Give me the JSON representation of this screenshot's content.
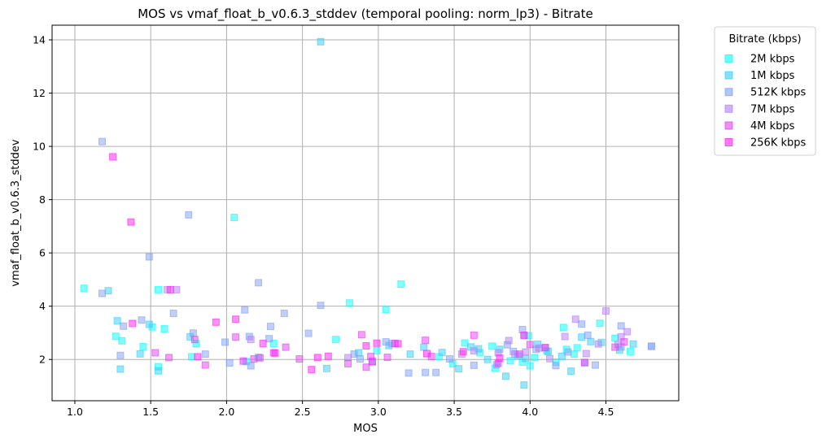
{
  "chart_data": {
    "type": "scatter",
    "title": "MOS vs vmaf_float_b_v0.6.3_stddev (temporal pooling: norm_lp3) - Bitrate",
    "xlabel": "MOS",
    "ylabel": "vmaf_float_b_v0.6.3_stddev",
    "xlim": [
      0.85,
      4.98
    ],
    "ylim": [
      0.45,
      14.55
    ],
    "xticks": [
      1.0,
      1.5,
      2.0,
      2.5,
      3.0,
      3.5,
      4.0,
      4.5
    ],
    "xtick_labels": [
      "1.0",
      "1.5",
      "2.0",
      "2.5",
      "3.0",
      "3.5",
      "4.0",
      "4.5"
    ],
    "yticks": [
      2,
      4,
      6,
      8,
      10,
      12,
      14
    ],
    "ytick_labels": [
      "2",
      "4",
      "6",
      "8",
      "10",
      "12",
      "14"
    ],
    "grid": true,
    "marker": "square",
    "legend": {
      "title": "Bitrate (kbps)",
      "placement": "outside-top-right"
    },
    "series": [
      {
        "name": "2M kbps",
        "color": "#00ffff",
        "points": [
          [
            1.06,
            4.67
          ],
          [
            1.27,
            2.87
          ],
          [
            1.31,
            2.7
          ],
          [
            1.45,
            2.48
          ],
          [
            1.51,
            3.22
          ],
          [
            1.55,
            1.73
          ],
          [
            1.55,
            4.62
          ],
          [
            1.59,
            3.15
          ],
          [
            1.77,
            2.1
          ],
          [
            1.8,
            2.6
          ],
          [
            2.05,
            7.33
          ],
          [
            2.13,
            1.92
          ],
          [
            2.31,
            2.6
          ],
          [
            2.72,
            2.75
          ],
          [
            2.81,
            4.12
          ],
          [
            2.99,
            2.33
          ],
          [
            3.05,
            3.87
          ],
          [
            3.15,
            4.83
          ],
          [
            3.4,
            2.1
          ],
          [
            3.49,
            1.84
          ],
          [
            3.57,
            2.62
          ],
          [
            3.67,
            2.25
          ],
          [
            3.75,
            2.5
          ],
          [
            3.77,
            1.67
          ],
          [
            3.87,
            1.95
          ],
          [
            3.95,
            1.9
          ],
          [
            4.0,
            1.76
          ],
          [
            4.03,
            2.07
          ],
          [
            4.11,
            2.32
          ],
          [
            4.17,
            1.9
          ],
          [
            4.22,
            3.2
          ],
          [
            4.24,
            2.38
          ],
          [
            4.29,
            2.2
          ],
          [
            4.31,
            2.44
          ],
          [
            4.46,
            3.36
          ],
          [
            4.56,
            2.8
          ],
          [
            4.66,
            2.3
          ],
          [
            4.8,
            2.5
          ],
          [
            3.99,
            2.89
          ]
        ]
      },
      {
        "name": "1M kbps",
        "color": "#32cdfe",
        "points": [
          [
            1.22,
            4.58
          ],
          [
            1.28,
            3.45
          ],
          [
            1.3,
            1.64
          ],
          [
            1.43,
            2.21
          ],
          [
            1.49,
            3.32
          ],
          [
            1.55,
            1.57
          ],
          [
            1.76,
            2.85
          ],
          [
            2.21,
            2.08
          ],
          [
            2.62,
            13.93
          ],
          [
            2.66,
            1.66
          ],
          [
            2.87,
            2.25
          ],
          [
            2.96,
            1.89
          ],
          [
            3.07,
            2.52
          ],
          [
            3.21,
            2.2
          ],
          [
            3.3,
            2.46
          ],
          [
            3.42,
            2.26
          ],
          [
            3.53,
            1.65
          ],
          [
            3.61,
            2.47
          ],
          [
            3.66,
            2.4
          ],
          [
            3.72,
            2.0
          ],
          [
            3.8,
            2.38
          ],
          [
            3.84,
            1.37
          ],
          [
            3.92,
            2.13
          ],
          [
            3.96,
            1.04
          ],
          [
            4.05,
            2.57
          ],
          [
            4.12,
            2.3
          ],
          [
            4.21,
            2.12
          ],
          [
            4.27,
            1.56
          ],
          [
            4.34,
            2.84
          ],
          [
            4.4,
            2.67
          ],
          [
            4.47,
            2.64
          ],
          [
            4.59,
            2.36
          ],
          [
            4.68,
            2.58
          ],
          [
            3.97,
            2.04
          ]
        ]
      },
      {
        "name": "512K kbps",
        "color": "#7f9ef8",
        "points": [
          [
            1.18,
            10.18
          ],
          [
            1.18,
            4.48
          ],
          [
            1.3,
            2.15
          ],
          [
            1.32,
            3.25
          ],
          [
            1.44,
            3.48
          ],
          [
            1.49,
            5.85
          ],
          [
            1.65,
            3.73
          ],
          [
            1.75,
            7.43
          ],
          [
            1.78,
            2.99
          ],
          [
            1.86,
            2.2
          ],
          [
            1.99,
            2.65
          ],
          [
            2.02,
            1.87
          ],
          [
            2.12,
            3.86
          ],
          [
            2.15,
            2.86
          ],
          [
            2.16,
            1.76
          ],
          [
            2.21,
            4.88
          ],
          [
            2.28,
            2.78
          ],
          [
            2.29,
            3.24
          ],
          [
            2.38,
            3.73
          ],
          [
            2.54,
            2.98
          ],
          [
            2.62,
            4.03
          ],
          [
            2.84,
            2.2
          ],
          [
            2.88,
            2.02
          ],
          [
            3.05,
            2.66
          ],
          [
            3.09,
            2.6
          ],
          [
            3.2,
            1.49
          ],
          [
            3.31,
            1.51
          ],
          [
            3.38,
            1.51
          ],
          [
            3.47,
            2.02
          ],
          [
            3.63,
            1.78
          ],
          [
            3.78,
            1.8
          ],
          [
            3.85,
            2.55
          ],
          [
            3.89,
            2.3
          ],
          [
            3.95,
            3.12
          ],
          [
            4.04,
            2.38
          ],
          [
            4.17,
            1.77
          ],
          [
            4.25,
            2.28
          ],
          [
            4.34,
            3.33
          ],
          [
            4.36,
            1.87
          ],
          [
            4.38,
            2.91
          ],
          [
            4.43,
            1.79
          ],
          [
            4.6,
            2.47
          ],
          [
            4.6,
            3.26
          ]
        ]
      },
      {
        "name": "7M kbps",
        "color": "#b37ef6",
        "points": [
          [
            1.61,
            4.62
          ],
          [
            1.67,
            4.62
          ],
          [
            2.16,
            2.75
          ],
          [
            2.8,
            2.07
          ],
          [
            3.55,
            2.2
          ],
          [
            3.63,
            2.32
          ],
          [
            3.79,
            2.25
          ],
          [
            3.86,
            2.71
          ],
          [
            3.9,
            2.2
          ],
          [
            3.96,
            2.9
          ],
          [
            4.06,
            2.43
          ],
          [
            4.1,
            2.45
          ],
          [
            4.13,
            2.03
          ],
          [
            4.23,
            2.86
          ],
          [
            4.3,
            3.51
          ],
          [
            4.37,
            2.22
          ],
          [
            4.45,
            2.58
          ],
          [
            4.5,
            3.82
          ],
          [
            4.58,
            2.56
          ],
          [
            4.6,
            2.85
          ],
          [
            4.64,
            3.04
          ],
          [
            4.8,
            2.49
          ],
          [
            3.97,
            2.28
          ]
        ]
      },
      {
        "name": "4M kbps",
        "color": "#e340f6",
        "points": [
          [
            1.53,
            2.25
          ],
          [
            1.62,
            2.07
          ],
          [
            1.79,
            2.75
          ],
          [
            1.86,
            1.79
          ],
          [
            2.06,
            2.84
          ],
          [
            2.18,
            2.02
          ],
          [
            2.22,
            2.06
          ],
          [
            2.31,
            2.25
          ],
          [
            2.39,
            2.46
          ],
          [
            2.48,
            2.02
          ],
          [
            2.8,
            1.84
          ],
          [
            2.89,
            2.93
          ],
          [
            2.92,
            1.71
          ],
          [
            2.95,
            2.11
          ],
          [
            3.06,
            2.08
          ],
          [
            3.11,
            2.6
          ],
          [
            3.31,
            2.72
          ],
          [
            3.35,
            2.11
          ],
          [
            3.63,
            2.91
          ],
          [
            3.79,
            1.86
          ],
          [
            3.93,
            2.2
          ],
          [
            3.96,
            2.91
          ],
          [
            4.0,
            2.56
          ],
          [
            4.1,
            2.44
          ],
          [
            4.36,
            1.89
          ],
          [
            4.56,
            2.46
          ],
          [
            4.62,
            2.66
          ]
        ]
      },
      {
        "name": "256K kbps",
        "color": "#ff1ef8",
        "points": [
          [
            1.25,
            9.61
          ],
          [
            1.37,
            7.16
          ],
          [
            1.38,
            3.35
          ],
          [
            1.63,
            4.62
          ],
          [
            1.81,
            2.1
          ],
          [
            1.93,
            3.4
          ],
          [
            2.06,
            3.51
          ],
          [
            2.11,
            1.94
          ],
          [
            2.24,
            2.6
          ],
          [
            2.32,
            2.24
          ],
          [
            2.56,
            1.62
          ],
          [
            2.6,
            2.07
          ],
          [
            2.67,
            2.12
          ],
          [
            2.92,
            2.51
          ],
          [
            2.96,
            1.93
          ],
          [
            2.99,
            2.61
          ],
          [
            3.13,
            2.59
          ],
          [
            3.32,
            2.22
          ],
          [
            3.56,
            2.29
          ],
          [
            3.8,
            2.05
          ]
        ]
      }
    ]
  }
}
